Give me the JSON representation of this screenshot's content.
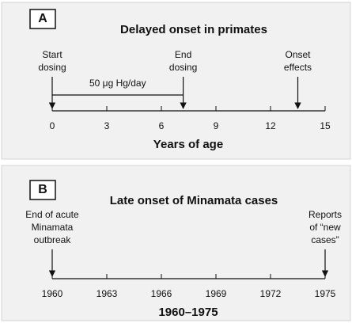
{
  "panels": [
    {
      "letter": "A",
      "title": "Delayed onset in primates",
      "xlim": [
        0,
        15
      ],
      "xticks": [
        0,
        3,
        6,
        9,
        12,
        15
      ],
      "axis_label": "Years of age",
      "events": [
        {
          "lines": [
            "Start",
            "dosing"
          ],
          "x": 0
        },
        {
          "lines": [
            "End",
            "dosing"
          ],
          "x": 7.2
        },
        {
          "lines": [
            "Onset",
            "effects"
          ],
          "x": 13.5
        }
      ],
      "interval_label": "50 μg Hg/day"
    },
    {
      "letter": "B",
      "title": "Late onset of Minamata cases",
      "xlim": [
        1960,
        1975
      ],
      "xticks": [
        1960,
        1963,
        1966,
        1969,
        1972,
        1975
      ],
      "axis_label": "1960–1975",
      "events": [
        {
          "lines": [
            "End of acute",
            "Minamata",
            "outbreak"
          ],
          "x": 1960
        },
        {
          "lines": [
            "Reports",
            "of “new",
            "cases”"
          ],
          "x": 1975
        }
      ]
    }
  ]
}
